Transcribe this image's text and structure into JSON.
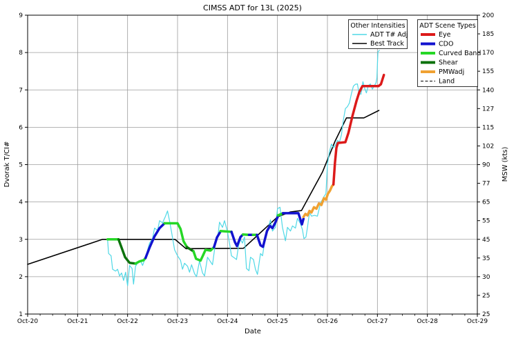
{
  "title": "CIMSS ADT for 13L (2025)",
  "axes": {
    "x": {
      "label": "Date",
      "tick_labels": [
        "Oct-20",
        "Oct-21",
        "Oct-22",
        "Oct-23",
        "Oct-24",
        "Oct-25",
        "Oct-26",
        "Oct-27",
        "Oct-28",
        "Oct-29"
      ],
      "range_days": [
        0,
        9
      ],
      "minor_ticks_per_day": 3
    },
    "y_left": {
      "label": "Dvorak T/CI#",
      "tick_labels": [
        "1",
        "2",
        "3",
        "4",
        "5",
        "6",
        "7",
        "8",
        "9"
      ],
      "range": [
        1,
        9
      ],
      "grid_at": [
        2,
        3,
        4,
        5,
        6,
        7,
        8
      ]
    },
    "y_right": {
      "label": "MSW (kts)",
      "tick_labels_top_to_bottom": [
        "200",
        "185",
        "170",
        "155",
        "140",
        "127",
        "115",
        "102",
        "90",
        "77",
        "65",
        "55",
        "45",
        "35",
        "30",
        "25",
        "25"
      ],
      "tick_t_step": 0.5
    }
  },
  "colors": {
    "eye": "#dc1a1a",
    "cdo": "#1212cf",
    "curved_band": "#26d726",
    "shear": "#0c720c",
    "pmwadj": "#f0a132",
    "adt_adj": "#4ed8e6",
    "best_track": "#000000",
    "land": "#000000",
    "grid": "#9c9c9c"
  },
  "legend_other": {
    "title": "Other Intensities",
    "entries": [
      {
        "label": "ADT T# Adj",
        "color_key": "adt_adj",
        "width": 1.5,
        "dashed": false
      },
      {
        "label": "Best Track",
        "color_key": "best_track",
        "width": 1.5,
        "dashed": false
      }
    ]
  },
  "legend_scenes": {
    "title": "ADT Scene Types",
    "entries": [
      {
        "label": "Eye",
        "color_key": "eye",
        "width": 4,
        "dashed": false
      },
      {
        "label": "CDO",
        "color_key": "cdo",
        "width": 4,
        "dashed": false
      },
      {
        "label": "Curved Band",
        "color_key": "curved_band",
        "width": 4,
        "dashed": false
      },
      {
        "label": "Shear",
        "color_key": "shear",
        "width": 4,
        "dashed": false
      },
      {
        "label": "PMWadj",
        "color_key": "pmwadj",
        "width": 4,
        "dashed": false
      },
      {
        "label": "Land",
        "color_key": "land",
        "width": 1,
        "dashed": true
      }
    ]
  },
  "chart_data": {
    "type": "line",
    "title": "CIMSS ADT for 13L (2025)",
    "xlabel": "Date",
    "ylabel_left": "Dvorak T/CI#",
    "ylabel_right": "MSW (kts)",
    "x_unit": "days after Oct-20 00Z",
    "x_range": [
      0,
      9
    ],
    "y_range": [
      1,
      9
    ],
    "grid": true,
    "series": [
      {
        "name": "ADT T# Adj",
        "color_key": "adt_adj",
        "width": 1.2,
        "points": [
          [
            1.6,
            3.0
          ],
          [
            1.62,
            2.62
          ],
          [
            1.67,
            2.56
          ],
          [
            1.7,
            2.2
          ],
          [
            1.76,
            2.15
          ],
          [
            1.8,
            2.2
          ],
          [
            1.84,
            2.02
          ],
          [
            1.88,
            2.1
          ],
          [
            1.92,
            1.9
          ],
          [
            1.96,
            2.12
          ],
          [
            2.0,
            1.76
          ],
          [
            2.04,
            2.3
          ],
          [
            2.09,
            2.22
          ],
          [
            2.12,
            1.8
          ],
          [
            2.16,
            2.28
          ],
          [
            2.2,
            2.36
          ],
          [
            2.26,
            2.42
          ],
          [
            2.3,
            2.3
          ],
          [
            2.36,
            2.52
          ],
          [
            2.44,
            2.9
          ],
          [
            2.5,
            3.02
          ],
          [
            2.54,
            3.3
          ],
          [
            2.6,
            3.24
          ],
          [
            2.64,
            3.5
          ],
          [
            2.7,
            3.44
          ],
          [
            2.76,
            3.62
          ],
          [
            2.8,
            3.76
          ],
          [
            2.84,
            3.5
          ],
          [
            2.88,
            3.2
          ],
          [
            2.94,
            2.72
          ],
          [
            3.0,
            2.56
          ],
          [
            3.06,
            2.44
          ],
          [
            3.1,
            2.2
          ],
          [
            3.14,
            2.36
          ],
          [
            3.2,
            2.28
          ],
          [
            3.24,
            2.12
          ],
          [
            3.28,
            2.32
          ],
          [
            3.34,
            2.08
          ],
          [
            3.38,
            2.0
          ],
          [
            3.44,
            2.42
          ],
          [
            3.5,
            2.1
          ],
          [
            3.54,
            2.02
          ],
          [
            3.6,
            2.52
          ],
          [
            3.66,
            2.4
          ],
          [
            3.7,
            2.32
          ],
          [
            3.76,
            2.92
          ],
          [
            3.8,
            3.02
          ],
          [
            3.84,
            3.46
          ],
          [
            3.9,
            3.32
          ],
          [
            3.94,
            3.5
          ],
          [
            4.0,
            3.2
          ],
          [
            4.04,
            2.9
          ],
          [
            4.08,
            2.56
          ],
          [
            4.14,
            2.5
          ],
          [
            4.18,
            2.46
          ],
          [
            4.22,
            2.82
          ],
          [
            4.26,
            3.0
          ],
          [
            4.3,
            2.9
          ],
          [
            4.34,
            3.06
          ],
          [
            4.38,
            2.22
          ],
          [
            4.43,
            2.16
          ],
          [
            4.46,
            2.52
          ],
          [
            4.52,
            2.46
          ],
          [
            4.56,
            2.2
          ],
          [
            4.6,
            2.06
          ],
          [
            4.66,
            2.62
          ],
          [
            4.7,
            2.56
          ],
          [
            4.76,
            3.06
          ],
          [
            4.82,
            3.32
          ],
          [
            4.86,
            3.52
          ],
          [
            4.9,
            3.22
          ],
          [
            4.96,
            3.32
          ],
          [
            5.0,
            3.82
          ],
          [
            5.05,
            3.86
          ],
          [
            5.1,
            3.32
          ],
          [
            5.16,
            2.96
          ],
          [
            5.2,
            3.32
          ],
          [
            5.26,
            3.22
          ],
          [
            5.3,
            3.36
          ],
          [
            5.36,
            3.3
          ],
          [
            5.4,
            3.56
          ],
          [
            5.46,
            3.42
          ],
          [
            5.5,
            3.26
          ],
          [
            5.53,
            3.02
          ],
          [
            5.57,
            3.06
          ],
          [
            5.6,
            3.32
          ],
          [
            5.64,
            3.72
          ],
          [
            5.68,
            3.62
          ],
          [
            5.74,
            3.64
          ],
          [
            5.8,
            3.62
          ],
          [
            5.86,
            3.96
          ],
          [
            5.92,
            4.12
          ],
          [
            5.97,
            4.22
          ],
          [
            6.0,
            5.0
          ],
          [
            6.04,
            5.35
          ],
          [
            6.08,
            5.55
          ],
          [
            6.12,
            5.45
          ],
          [
            6.16,
            5.52
          ],
          [
            6.2,
            5.65
          ],
          [
            6.24,
            5.6
          ],
          [
            6.28,
            5.8
          ],
          [
            6.32,
            6.2
          ],
          [
            6.36,
            6.5
          ],
          [
            6.4,
            6.55
          ],
          [
            6.44,
            6.65
          ],
          [
            6.48,
            6.9
          ],
          [
            6.52,
            7.1
          ],
          [
            6.56,
            7.15
          ],
          [
            6.6,
            7.16
          ],
          [
            6.63,
            6.92
          ],
          [
            6.67,
            6.88
          ],
          [
            6.71,
            7.22
          ],
          [
            6.74,
            7.06
          ],
          [
            6.78,
            6.92
          ],
          [
            6.82,
            7.12
          ],
          [
            6.86,
            7.16
          ],
          [
            6.9,
            7.02
          ],
          [
            6.94,
            7.12
          ],
          [
            6.97,
            7.18
          ],
          [
            6.99,
            7.32
          ],
          [
            7.01,
            8.02
          ],
          [
            7.04,
            8.06
          ]
        ]
      },
      {
        "name": "Best Track",
        "color_key": "best_track",
        "width": 1.6,
        "points": [
          [
            0.0,
            2.33
          ],
          [
            1.5,
            3.0
          ],
          [
            2.95,
            3.0
          ],
          [
            3.17,
            2.75
          ],
          [
            4.32,
            2.76
          ],
          [
            5.0,
            3.6
          ],
          [
            5.25,
            3.73
          ],
          [
            5.48,
            3.77
          ],
          [
            5.9,
            4.8
          ],
          [
            6.15,
            5.62
          ],
          [
            6.38,
            6.25
          ],
          [
            6.73,
            6.25
          ],
          [
            7.03,
            6.45
          ]
        ]
      }
    ],
    "scene_segments": [
      {
        "scene": "Curved Band",
        "points": [
          [
            1.6,
            3.0
          ],
          [
            1.82,
            3.0
          ]
        ]
      },
      {
        "scene": "Shear",
        "points": [
          [
            1.82,
            3.0
          ],
          [
            1.95,
            2.52
          ],
          [
            2.04,
            2.37
          ],
          [
            2.16,
            2.35
          ]
        ]
      },
      {
        "scene": "Curved Band",
        "points": [
          [
            2.16,
            2.35
          ],
          [
            2.24,
            2.41
          ],
          [
            2.32,
            2.44
          ],
          [
            2.36,
            2.5
          ]
        ]
      },
      {
        "scene": "CDO",
        "points": [
          [
            2.36,
            2.5
          ],
          [
            2.44,
            2.78
          ],
          [
            2.54,
            3.08
          ],
          [
            2.64,
            3.3
          ],
          [
            2.74,
            3.43
          ]
        ]
      },
      {
        "scene": "Curved Band",
        "points": [
          [
            2.74,
            3.43
          ],
          [
            3.0,
            3.43
          ],
          [
            3.06,
            3.28
          ],
          [
            3.12,
            2.95
          ],
          [
            3.19,
            2.79
          ]
        ]
      },
      {
        "scene": "Shear",
        "points": [
          [
            3.19,
            2.79
          ],
          [
            3.32,
            2.68
          ]
        ]
      },
      {
        "scene": "Curved Band",
        "points": [
          [
            3.32,
            2.68
          ],
          [
            3.37,
            2.48
          ],
          [
            3.46,
            2.43
          ],
          [
            3.51,
            2.57
          ],
          [
            3.56,
            2.72
          ],
          [
            3.66,
            2.7
          ],
          [
            3.73,
            2.79
          ]
        ]
      },
      {
        "scene": "CDO",
        "points": [
          [
            3.73,
            2.79
          ],
          [
            3.79,
            3.05
          ],
          [
            3.86,
            3.21
          ]
        ]
      },
      {
        "scene": "Curved Band",
        "points": [
          [
            3.86,
            3.22
          ],
          [
            4.08,
            3.2
          ]
        ]
      },
      {
        "scene": "CDO",
        "points": [
          [
            4.08,
            3.2
          ],
          [
            4.15,
            2.92
          ],
          [
            4.19,
            2.82
          ],
          [
            4.26,
            3.06
          ],
          [
            4.31,
            3.13
          ]
        ]
      },
      {
        "scene": "Curved Band",
        "points": [
          [
            4.31,
            3.13
          ],
          [
            4.43,
            3.12
          ]
        ]
      },
      {
        "scene": "CDO",
        "points": [
          [
            4.43,
            3.12
          ],
          [
            4.51,
            3.12
          ]
        ]
      },
      {
        "scene": "Curved Band",
        "points": [
          [
            4.51,
            3.12
          ],
          [
            4.59,
            3.12
          ]
        ]
      },
      {
        "scene": "CDO",
        "points": [
          [
            4.59,
            3.12
          ],
          [
            4.66,
            2.84
          ],
          [
            4.71,
            2.8
          ],
          [
            4.79,
            3.22
          ],
          [
            4.85,
            3.36
          ],
          [
            4.9,
            3.3
          ],
          [
            4.96,
            3.46
          ],
          [
            5.01,
            3.62
          ]
        ]
      },
      {
        "scene": "Curved Band",
        "points": [
          [
            5.01,
            3.64
          ],
          [
            5.11,
            3.7
          ]
        ]
      },
      {
        "scene": "CDO",
        "points": [
          [
            5.11,
            3.7
          ],
          [
            5.42,
            3.7
          ],
          [
            5.49,
            3.4
          ],
          [
            5.52,
            3.55
          ]
        ]
      },
      {
        "scene": "PMWadj",
        "points": [
          [
            5.52,
            3.6
          ],
          [
            5.56,
            3.68
          ],
          [
            5.6,
            3.64
          ],
          [
            5.64,
            3.76
          ],
          [
            5.68,
            3.72
          ],
          [
            5.73,
            3.86
          ],
          [
            5.78,
            3.82
          ],
          [
            5.83,
            3.96
          ],
          [
            5.88,
            3.92
          ],
          [
            5.93,
            4.1
          ],
          [
            5.97,
            4.06
          ],
          [
            6.01,
            4.22
          ],
          [
            6.05,
            4.3
          ],
          [
            6.09,
            4.42
          ],
          [
            6.12,
            4.47
          ]
        ]
      },
      {
        "scene": "Eye",
        "points": [
          [
            6.12,
            4.47
          ],
          [
            6.15,
            5.05
          ],
          [
            6.18,
            5.45
          ],
          [
            6.21,
            5.58
          ],
          [
            6.36,
            5.6
          ],
          [
            6.42,
            5.85
          ],
          [
            6.5,
            6.3
          ],
          [
            6.58,
            6.7
          ],
          [
            6.64,
            6.95
          ],
          [
            6.7,
            7.1
          ],
          [
            7.02,
            7.1
          ],
          [
            7.07,
            7.15
          ],
          [
            7.13,
            7.4
          ]
        ]
      }
    ]
  }
}
